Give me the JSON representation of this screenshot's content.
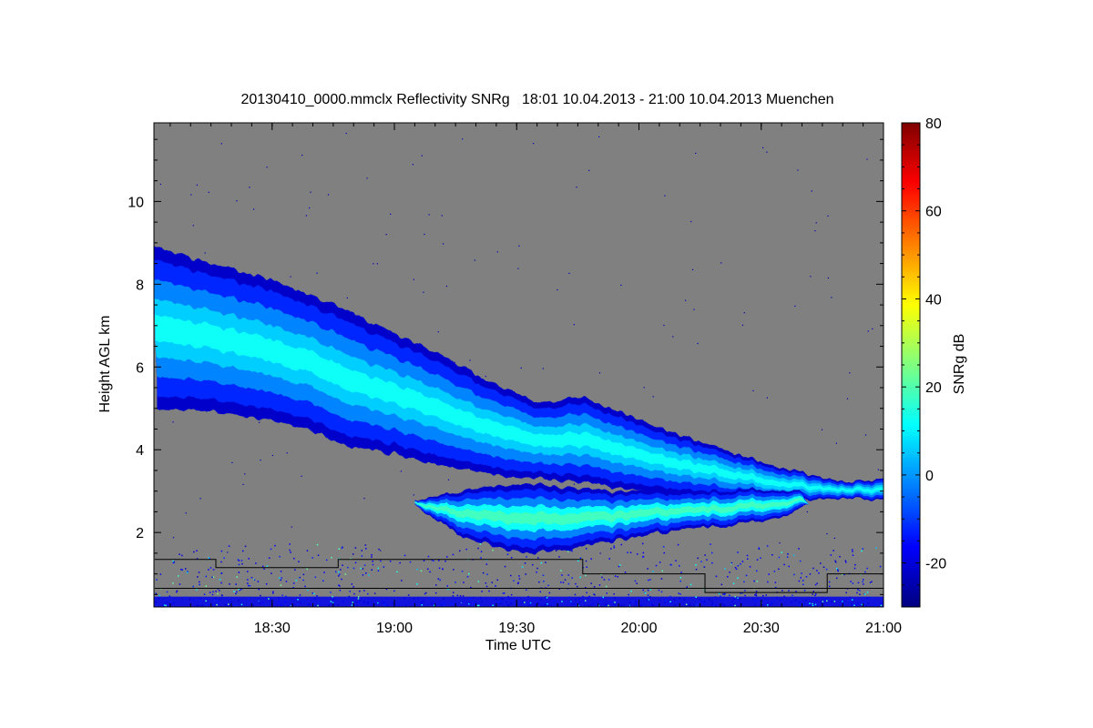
{
  "chart_data": {
    "type": "heatmap",
    "title": "20130410_0000.mmclx Reflectivity SNRg   18:01 10.04.2013 - 21:00 10.04.2013 Muenchen",
    "xlabel": "Time UTC",
    "ylabel": "Height AGL km",
    "xlim": [
      18.0167,
      21.0
    ],
    "ylim": [
      0.2,
      11.9
    ],
    "x_ticks": [
      {
        "value": 18.5,
        "label": "18:30"
      },
      {
        "value": 19.0,
        "label": "19:00"
      },
      {
        "value": 19.5,
        "label": "19:30"
      },
      {
        "value": 20.0,
        "label": "20:00"
      },
      {
        "value": 20.5,
        "label": "20:30"
      },
      {
        "value": 21.0,
        "label": "21:00"
      }
    ],
    "y_ticks": [
      {
        "value": 2,
        "label": "2"
      },
      {
        "value": 4,
        "label": "4"
      },
      {
        "value": 6,
        "label": "6"
      },
      {
        "value": 8,
        "label": "8"
      },
      {
        "value": 10,
        "label": "10"
      }
    ],
    "background_color": "#808080",
    "colorbar": {
      "label": "SNRg dB",
      "range": [
        -30,
        80
      ],
      "ticks": [
        {
          "value": -20,
          "label": "-20"
        },
        {
          "value": 0,
          "label": "0"
        },
        {
          "value": 20,
          "label": "20"
        },
        {
          "value": 40,
          "label": "40"
        },
        {
          "value": 60,
          "label": "60"
        },
        {
          "value": 80,
          "label": "80"
        }
      ],
      "colormap": "jet"
    },
    "echo_layers": [
      {
        "name": "upper",
        "snr_core": 12,
        "top": [
          [
            18.02,
            8.9
          ],
          [
            18.2,
            8.6
          ],
          [
            18.5,
            8.1
          ],
          [
            18.8,
            7.4
          ],
          [
            19.0,
            6.8
          ],
          [
            19.2,
            6.3
          ],
          [
            19.4,
            5.6
          ],
          [
            19.6,
            5.1
          ],
          [
            19.75,
            5.3
          ],
          [
            19.9,
            5.0
          ],
          [
            20.1,
            4.5
          ],
          [
            20.3,
            4.1
          ],
          [
            20.5,
            3.7
          ],
          [
            20.7,
            3.4
          ],
          [
            20.85,
            3.2
          ],
          [
            21.0,
            3.3
          ]
        ],
        "bottom": [
          [
            18.02,
            5.0
          ],
          [
            18.3,
            4.9
          ],
          [
            18.6,
            4.6
          ],
          [
            18.8,
            4.1
          ],
          [
            19.0,
            3.9
          ],
          [
            19.2,
            3.6
          ],
          [
            19.4,
            3.4
          ],
          [
            19.6,
            3.3
          ],
          [
            19.8,
            3.2
          ],
          [
            20.0,
            3.0
          ],
          [
            20.3,
            2.9
          ],
          [
            20.6,
            2.8
          ],
          [
            20.85,
            2.8
          ],
          [
            21.0,
            2.8
          ]
        ]
      },
      {
        "name": "lower",
        "snr_core": 18,
        "top": [
          [
            19.08,
            2.8
          ],
          [
            19.3,
            3.0
          ],
          [
            19.5,
            3.2
          ],
          [
            19.7,
            3.1
          ],
          [
            19.9,
            3.0
          ],
          [
            20.1,
            3.0
          ],
          [
            20.3,
            3.0
          ],
          [
            20.5,
            3.05
          ],
          [
            20.65,
            3.0
          ],
          [
            20.7,
            2.7
          ]
        ],
        "bottom": [
          [
            19.08,
            2.7
          ],
          [
            19.2,
            2.2
          ],
          [
            19.3,
            1.8
          ],
          [
            19.45,
            1.6
          ],
          [
            19.55,
            1.5
          ],
          [
            19.7,
            1.6
          ],
          [
            19.85,
            1.75
          ],
          [
            20.0,
            1.9
          ],
          [
            20.2,
            2.1
          ],
          [
            20.4,
            2.2
          ],
          [
            20.6,
            2.4
          ],
          [
            20.7,
            2.7
          ]
        ]
      }
    ],
    "boundary_lines": [
      {
        "name": "upper step line",
        "color": "#000000",
        "points": [
          [
            18.02,
            1.35
          ],
          [
            18.27,
            1.35
          ],
          [
            18.27,
            1.15
          ],
          [
            18.77,
            1.15
          ],
          [
            18.77,
            1.35
          ],
          [
            19.77,
            1.35
          ],
          [
            19.77,
            1.0
          ],
          [
            20.27,
            1.0
          ],
          [
            20.27,
            0.55
          ],
          [
            20.77,
            0.55
          ],
          [
            20.77,
            1.0
          ],
          [
            21.0,
            1.0
          ]
        ]
      },
      {
        "name": "lower line",
        "color": "#000000",
        "points": [
          [
            18.02,
            0.65
          ],
          [
            21.0,
            0.65
          ]
        ]
      }
    ]
  }
}
